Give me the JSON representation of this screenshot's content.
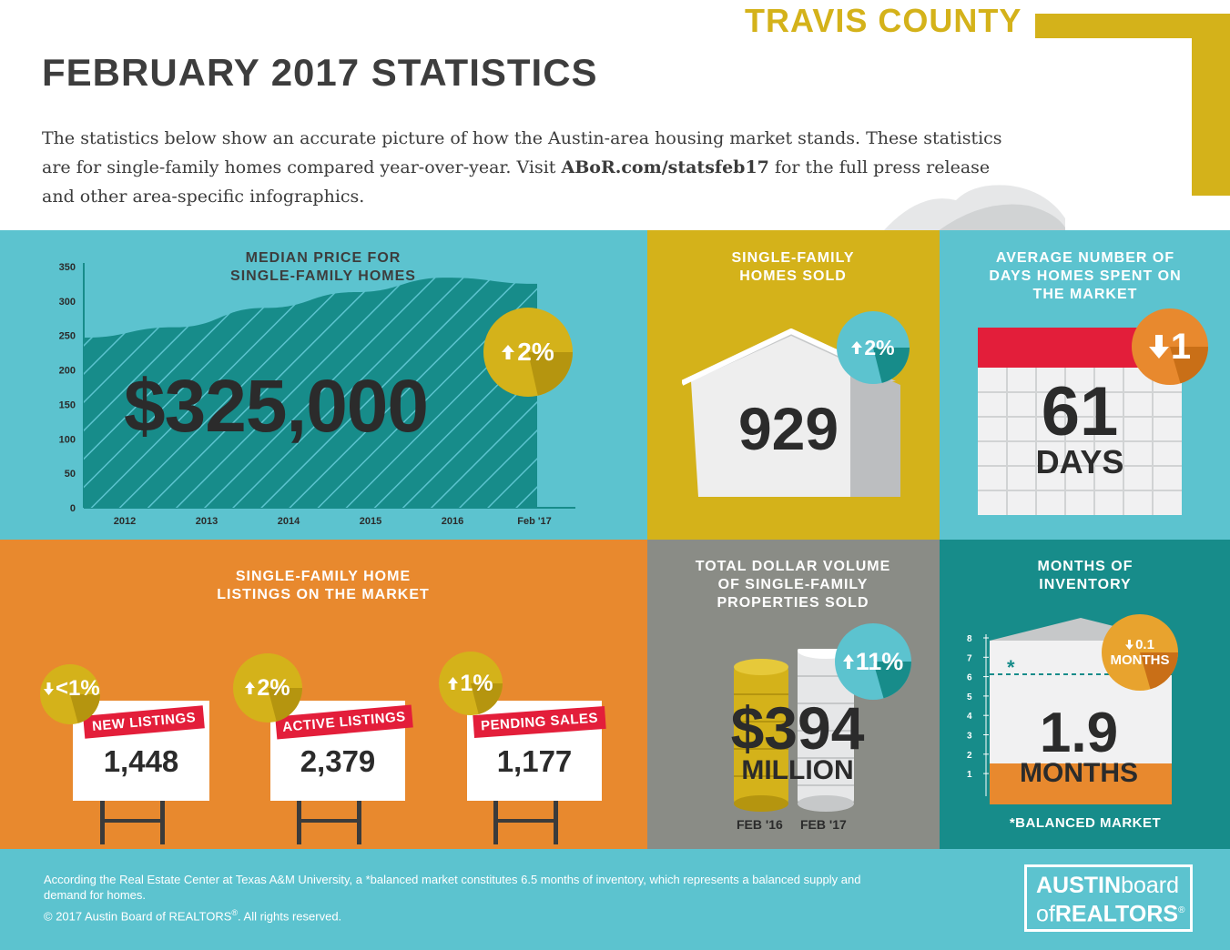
{
  "header": {
    "title": "FEBRUARY 2017 STATISTICS",
    "county": "TRAVIS COUNTY",
    "intro_before": "The statistics below show an accurate picture of how the Austin-area housing market stands. These statistics are for single-family homes compared year-over-year. Visit ",
    "intro_link": "ABoR.com/statsfeb17",
    "intro_after": " for the full press release and other area-specific infographics."
  },
  "median": {
    "title_line1": "MEDIAN PRICE FOR",
    "title_line2": "SINGLE-FAMILY HOMES",
    "value": "$325,000",
    "badge": "2%",
    "badge_dir": "up"
  },
  "chart_data": {
    "type": "area",
    "categories": [
      "2012",
      "2013",
      "2014",
      "2015",
      "2016",
      "Feb '17"
    ],
    "values": [
      247,
      262,
      290,
      313,
      334,
      325
    ],
    "yticks": [
      "0",
      "50",
      "100",
      "150",
      "200",
      "250",
      "300",
      "350"
    ],
    "ylim": [
      0,
      350
    ],
    "grid": false
  },
  "sold": {
    "title_line1": "SINGLE-FAMILY",
    "title_line2": "HOMES SOLD",
    "value": "929",
    "badge": "2%",
    "badge_dir": "up"
  },
  "days": {
    "title_line1": "AVERAGE NUMBER OF",
    "title_line2": "DAYS HOMES SPENT ON",
    "title_line3": "THE MARKET",
    "value": "61",
    "unit": "DAYS",
    "badge": "1",
    "badge_dir": "down"
  },
  "listings": {
    "title_line1": "SINGLE-FAMILY HOME",
    "title_line2": "LISTINGS ON THE MARKET",
    "signs": [
      {
        "label": "NEW LISTINGS",
        "value": "1,448",
        "badge": "<1%",
        "badge_dir": "down"
      },
      {
        "label": "ACTIVE LISTINGS",
        "value": "2,379",
        "badge": "2%",
        "badge_dir": "up"
      },
      {
        "label": "PENDING SALES",
        "value": "1,177",
        "badge": "1%",
        "badge_dir": "up"
      }
    ]
  },
  "volume": {
    "title_line1": "TOTAL DOLLAR VOLUME",
    "title_line2": "OF SINGLE-FAMILY",
    "title_line3": "PROPERTIES SOLD",
    "value": "$394",
    "unit": "MILLION",
    "badge": "11%",
    "badge_dir": "up",
    "label_prev": "FEB '16",
    "label_curr": "FEB '17"
  },
  "inventory": {
    "title_line1": "MONTHS OF",
    "title_line2": "INVENTORY",
    "value": "1.9",
    "unit": "MONTHS",
    "badge_line1": "0.1",
    "badge_line2": "MONTHS",
    "badge_dir": "down",
    "marker": "*",
    "footnote": "*BALANCED MARKET",
    "ticks": [
      "8",
      "7",
      "6",
      "5",
      "4",
      "3",
      "2",
      "1"
    ]
  },
  "footer": {
    "text": "According the Real Estate Center at Texas A&M University, a *balanced market constitutes 6.5 months of inventory, which represents a balanced supply and demand for homes.",
    "copyright": "© 2017  Austin Board of REALTORS",
    "reg": "®",
    "rights": ".  All rights reserved."
  },
  "logo": {
    "line1_bold": "AUSTIN",
    "line1_light": "board",
    "line2_light": "of",
    "line2_bold": "REALTORS",
    "reg": "®"
  },
  "colors": {
    "teal": "#5cc3cf",
    "dark_teal": "#178c8a",
    "gold": "#d4b21a",
    "orange": "#e8892e",
    "gray": "#8a8c86",
    "red": "#e31e3a",
    "text": "#3b3b3b"
  }
}
